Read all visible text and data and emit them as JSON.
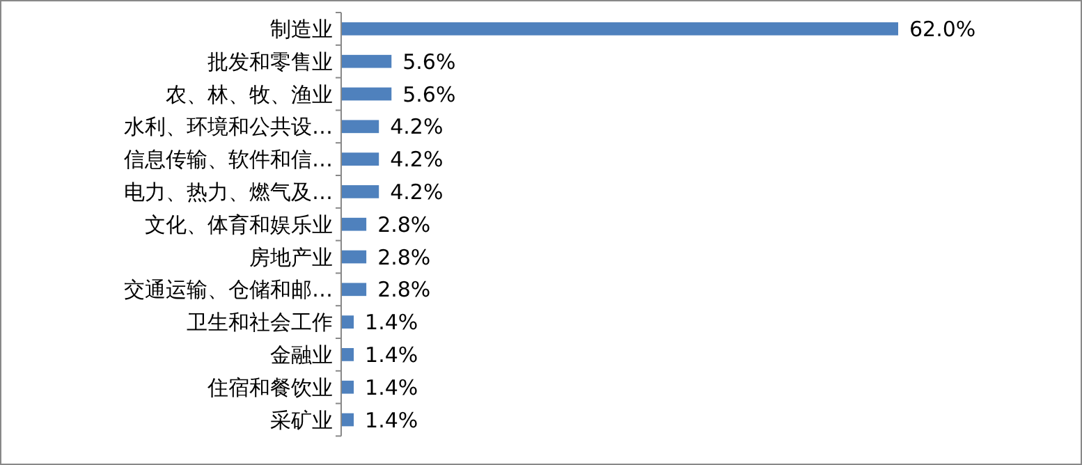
{
  "chart_data": {
    "type": "bar",
    "orientation": "horizontal",
    "categories": [
      "制造业",
      "批发和零售业",
      "农、林、牧、渔业",
      "水利、环境和公共设…",
      "信息传输、软件和信…",
      "电力、热力、燃气及…",
      "文化、体育和娱乐业",
      "房地产业",
      "交通运输、仓储和邮…",
      "卫生和社会工作",
      "金融业",
      "住宿和餐饮业",
      "采矿业"
    ],
    "values": [
      62.0,
      5.6,
      5.6,
      4.2,
      4.2,
      4.2,
      2.8,
      2.8,
      2.8,
      1.4,
      1.4,
      1.4,
      1.4
    ],
    "value_labels": [
      "62.0%",
      "5.6%",
      "5.6%",
      "4.2%",
      "4.2%",
      "4.2%",
      "2.8%",
      "2.8%",
      "2.8%",
      "1.4%",
      "1.4%",
      "1.4%",
      "1.4%"
    ],
    "color": "#4f81bd"
  }
}
